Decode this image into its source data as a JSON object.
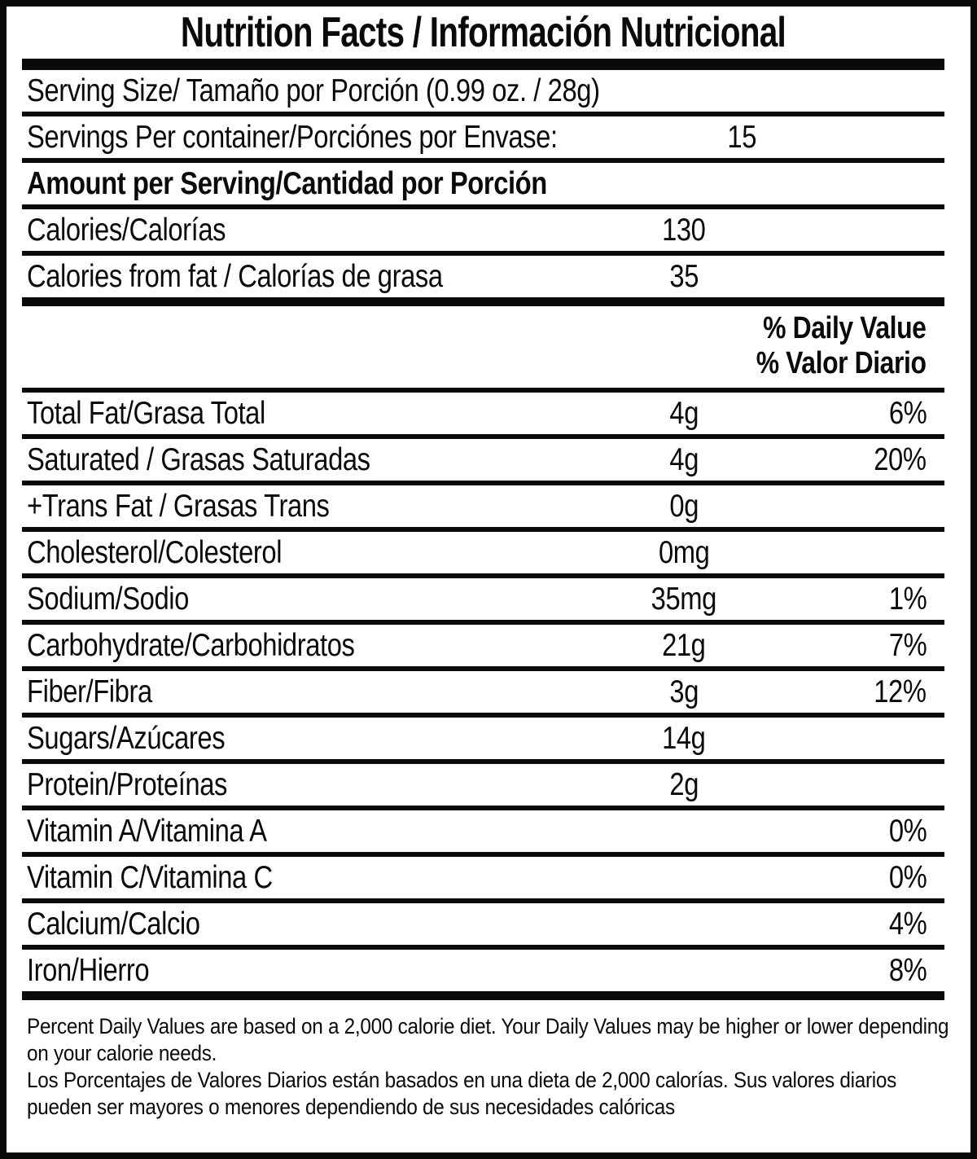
{
  "title": "Nutrition Facts / Información Nutricional",
  "colors": {
    "ink": "#0a0a0a",
    "background": "#ffffff"
  },
  "serving": {
    "serving_size": "Serving Size/ Tamaño por Porción  (0.99 oz. / 28g)",
    "servings_per_container_label": "Servings Per container/Porciónes por Envase:",
    "servings_per_container_value": "15"
  },
  "section_headers": {
    "amount_per_serving": "Amount per Serving/Cantidad por Porción",
    "daily_value_en": "% Daily Value",
    "daily_value_es": "% Valor Diario"
  },
  "energy_rows": [
    {
      "label": "Calories/Calorías",
      "amount": "130"
    },
    {
      "label": "Calories from fat / Calorías de grasa",
      "amount": "35"
    }
  ],
  "nutrients": [
    {
      "label": "Total Fat/Grasa Total",
      "amount": "4g",
      "dv": "6%"
    },
    {
      "label": "Saturated / Grasas Saturadas",
      "amount": "4g",
      "dv": "20%"
    },
    {
      "label": "+Trans Fat / Grasas Trans",
      "amount": "0g",
      "dv": ""
    },
    {
      "label": "Cholesterol/Colesterol",
      "amount": "0mg",
      "dv": ""
    },
    {
      "label": "Sodium/Sodio",
      "amount": "35mg",
      "dv": "1%"
    },
    {
      "label": "Carbohydrate/Carbohidratos",
      "amount": "21g",
      "dv": "7%"
    },
    {
      "label": "Fiber/Fibra",
      "amount": "3g",
      "dv": "12%"
    },
    {
      "label": "Sugars/Azúcares",
      "amount": "14g",
      "dv": ""
    },
    {
      "label": "Protein/Proteínas",
      "amount": "2g",
      "dv": ""
    },
    {
      "label": "Vitamin A/Vitamina A",
      "amount": "",
      "dv": "0%"
    },
    {
      "label": "Vitamin C/Vitamina C",
      "amount": "",
      "dv": "0%"
    },
    {
      "label": "Calcium/Calcio",
      "amount": "",
      "dv": "4%"
    },
    {
      "label": "Iron/Hierro",
      "amount": "",
      "dv": "8%"
    }
  ],
  "footnote": {
    "en": "Percent Daily Values are based on a 2,000 calorie diet. Your Daily Values may be higher or lower depending on your calorie needs.",
    "es": "Los Porcentajes de Valores Diarios están basados en una dieta de 2,000 calorías. Sus valores diarios pueden ser mayores o menores dependiendo de sus necesidades calóricas"
  }
}
